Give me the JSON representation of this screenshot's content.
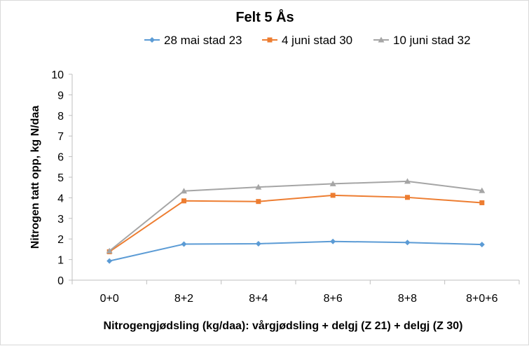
{
  "chart_data": {
    "type": "line",
    "title": "Felt 5 Ås",
    "xlabel": "Nitrogengjødsling (kg/daa): vårgjødsling + delgj (Z 21) + delgj (Z 30)",
    "ylabel": "Nitrogen tatt opp, kg N/daa",
    "categories": [
      "0+0",
      "8+2",
      "8+4",
      "8+6",
      "8+8",
      "8+0+6"
    ],
    "ylim": [
      0,
      10
    ],
    "yticks": [
      "0",
      "1",
      "2",
      "3",
      "4",
      "5",
      "6",
      "7",
      "8",
      "9",
      "10"
    ],
    "grid": false,
    "legend_position": "top",
    "series": [
      {
        "name": "28 mai stad 23",
        "values": [
          0.93,
          1.75,
          1.77,
          1.88,
          1.83,
          1.73
        ],
        "color": "#5b9bd5",
        "marker": "diamond"
      },
      {
        "name": "4 juni stad 30",
        "values": [
          1.38,
          3.85,
          3.82,
          4.12,
          4.02,
          3.76
        ],
        "color": "#ed7d31",
        "marker": "square"
      },
      {
        "name": "10 juni stad 32",
        "values": [
          1.42,
          4.33,
          4.52,
          4.68,
          4.8,
          4.35
        ],
        "color": "#a5a5a5",
        "marker": "triangle"
      }
    ]
  }
}
